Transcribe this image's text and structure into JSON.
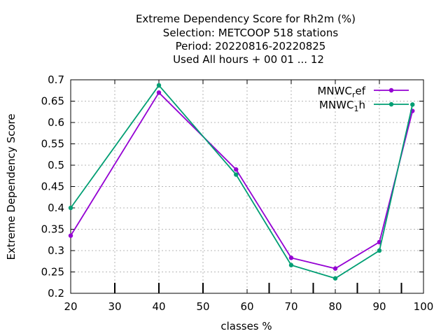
{
  "chart_data": {
    "type": "line",
    "title": [
      "Extreme Dependency Score  for Rh2m (%)",
      "Selection: METCOOP    518 stations",
      "Period: 20220816-20220825",
      "Used  All hours + 00 01 ... 12"
    ],
    "xlabel": "classes %",
    "ylabel": "Extreme Dependency Score",
    "xlim": [
      20,
      100
    ],
    "ylim": [
      0.2,
      0.7
    ],
    "xticks": [
      20,
      30,
      40,
      50,
      60,
      70,
      80,
      90,
      100
    ],
    "yticks": [
      0.2,
      0.25,
      0.3,
      0.35,
      0.4,
      0.45,
      0.5,
      0.55,
      0.6,
      0.65,
      0.7
    ],
    "grid": true,
    "legend_position": "top-right",
    "x": [
      20,
      40,
      57.5,
      70,
      80,
      90,
      97.5
    ],
    "series": [
      {
        "name": "MNWC_ref",
        "legend_main": "MNWC",
        "legend_sub": "r",
        "legend_tail": "ef",
        "color": "#9400d3",
        "values": [
          0.335,
          0.67,
          0.49,
          0.283,
          0.258,
          0.32,
          0.627
        ]
      },
      {
        "name": "MNWC_1h",
        "legend_main": "MNWC",
        "legend_sub": "1",
        "legend_tail": "h",
        "color": "#009e73",
        "values": [
          0.4,
          0.687,
          0.478,
          0.266,
          0.235,
          0.3,
          0.642
        ]
      }
    ],
    "bottom_markers": [
      30,
      40,
      50,
      65,
      75,
      85,
      95
    ]
  }
}
